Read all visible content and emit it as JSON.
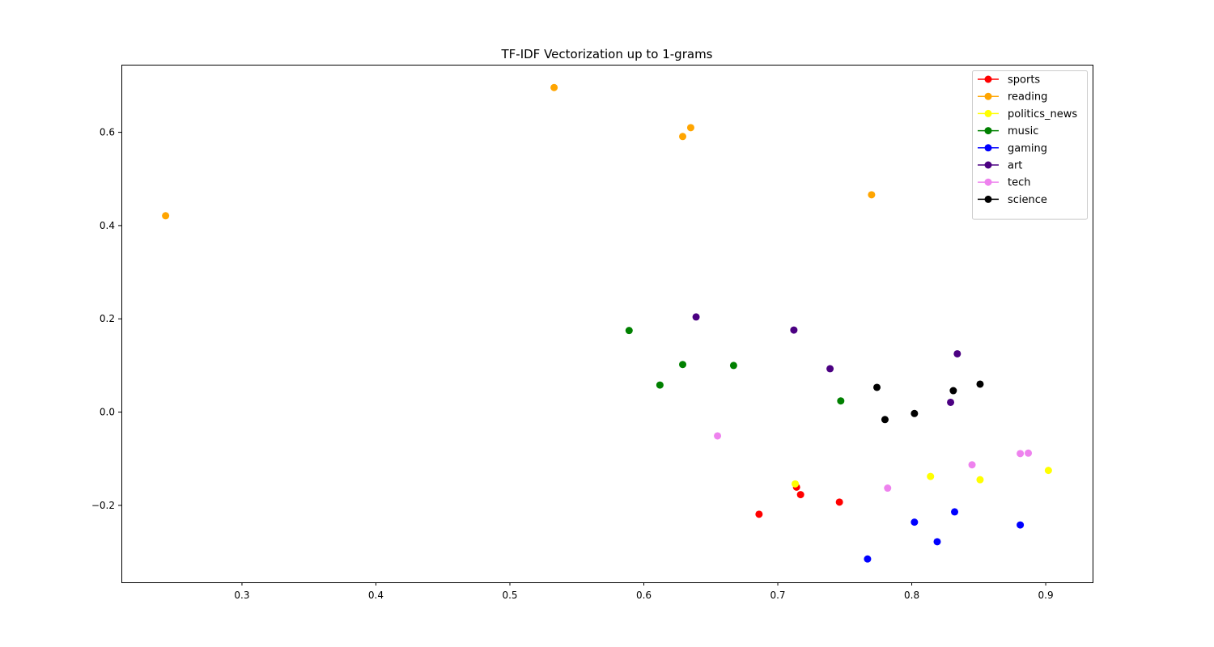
{
  "chart_data": {
    "type": "scatter",
    "title": "TF-IDF Vectorization up to 1-grams",
    "xlabel": "",
    "ylabel": "",
    "xlim": [
      0.21,
      0.935
    ],
    "ylim": [
      -0.365,
      0.745
    ],
    "xticks": [
      0.3,
      0.4,
      0.5,
      0.6,
      0.7,
      0.8,
      0.9
    ],
    "xtick_labels": [
      "0.3",
      "0.4",
      "0.5",
      "0.6",
      "0.7",
      "0.8",
      "0.9"
    ],
    "yticks": [
      -0.2,
      0.0,
      0.2,
      0.4,
      0.6
    ],
    "ytick_labels": [
      "−0.2",
      "0.0",
      "0.2",
      "0.4",
      "0.6"
    ],
    "grid": false,
    "legend_position": "top-right",
    "series": [
      {
        "name": "sports",
        "color": "#ff0000",
        "points": [
          [
            0.686,
            -0.219
          ],
          [
            0.714,
            -0.161
          ],
          [
            0.717,
            -0.177
          ],
          [
            0.746,
            -0.193
          ]
        ]
      },
      {
        "name": "reading",
        "color": "#ffa500",
        "points": [
          [
            0.243,
            0.421
          ],
          [
            0.533,
            0.696
          ],
          [
            0.629,
            0.591
          ],
          [
            0.635,
            0.61
          ],
          [
            0.77,
            0.466
          ]
        ]
      },
      {
        "name": "politics_news",
        "color": "#ffff00",
        "points": [
          [
            0.713,
            -0.154
          ],
          [
            0.814,
            -0.138
          ],
          [
            0.851,
            -0.145
          ],
          [
            0.902,
            -0.125
          ]
        ]
      },
      {
        "name": "music",
        "color": "#008000",
        "points": [
          [
            0.589,
            0.175
          ],
          [
            0.612,
            0.058
          ],
          [
            0.629,
            0.102
          ],
          [
            0.667,
            0.1
          ],
          [
            0.747,
            0.024
          ]
        ]
      },
      {
        "name": "gaming",
        "color": "#0000ff",
        "points": [
          [
            0.767,
            -0.315
          ],
          [
            0.802,
            -0.236
          ],
          [
            0.819,
            -0.278
          ],
          [
            0.832,
            -0.214
          ],
          [
            0.881,
            -0.242
          ]
        ]
      },
      {
        "name": "art",
        "color": "#4b0082",
        "points": [
          [
            0.639,
            0.204
          ],
          [
            0.712,
            0.176
          ],
          [
            0.739,
            0.093
          ],
          [
            0.829,
            0.021
          ],
          [
            0.834,
            0.125
          ]
        ]
      },
      {
        "name": "tech",
        "color": "#ee82ee",
        "points": [
          [
            0.655,
            -0.051
          ],
          [
            0.782,
            -0.163
          ],
          [
            0.845,
            -0.113
          ],
          [
            0.881,
            -0.089
          ],
          [
            0.887,
            -0.088
          ]
        ]
      },
      {
        "name": "science",
        "color": "#000000",
        "points": [
          [
            0.774,
            0.053
          ],
          [
            0.78,
            -0.016
          ],
          [
            0.802,
            -0.003
          ],
          [
            0.831,
            0.046
          ],
          [
            0.851,
            0.06
          ]
        ]
      }
    ]
  }
}
